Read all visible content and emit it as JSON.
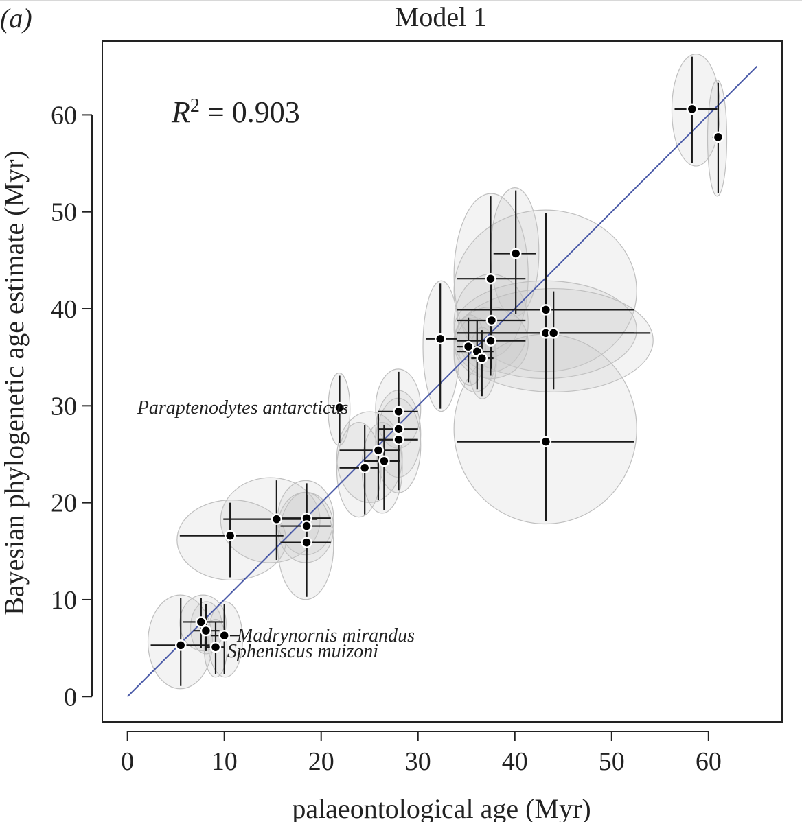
{
  "chart_data": {
    "type": "scatter",
    "panel_label": "(a)",
    "title": "Model 1",
    "xlabel": "palaeontological age (Myr)",
    "ylabel": "Bayesian phylogenetic age estimate (Myr)",
    "r2_label": "R",
    "r2_sup": "2",
    "r2_value": " = 0.903",
    "xlim": [
      -2.6,
      67.6
    ],
    "ylim": [
      -2.6,
      67.6
    ],
    "xticks": [
      0,
      10,
      20,
      30,
      40,
      50,
      60
    ],
    "yticks": [
      0,
      10,
      20,
      30,
      40,
      50,
      60
    ],
    "xtick_labels": [
      "0",
      "10",
      "20",
      "30",
      "40",
      "50",
      "60"
    ],
    "ytick_labels": [
      "0",
      "10",
      "20",
      "30",
      "40",
      "50",
      "60"
    ],
    "line": {
      "x": [
        0,
        65
      ],
      "y": [
        0,
        65
      ],
      "color": "#4a5aa8"
    },
    "colors": {
      "point": "#000000",
      "ellipse_fill": "#c8c8c8",
      "ellipse_stroke": "#bfbfbf",
      "errorbar": "#1a1a1a"
    },
    "points": [
      {
        "x": 58.3,
        "y": 60.6,
        "xlo": 56.5,
        "xhi": 60.9,
        "ylo": 55.0,
        "yhi": 66.0
      },
      {
        "x": 61.0,
        "y": 57.7,
        "xlo": 60.4,
        "xhi": 61.4,
        "ylo": 51.9,
        "yhi": 63.3
      },
      {
        "x": 40.1,
        "y": 45.7,
        "xlo": 37.8,
        "xhi": 42.2,
        "ylo": 39.5,
        "yhi": 52.2
      },
      {
        "x": 37.5,
        "y": 43.1,
        "xlo": 34.0,
        "xhi": 41.1,
        "ylo": 35.3,
        "yhi": 51.6
      },
      {
        "x": 43.2,
        "y": 39.9,
        "xlo": 34.0,
        "xhi": 52.3,
        "ylo": 33.8,
        "yhi": 49.9
      },
      {
        "x": 37.6,
        "y": 38.8,
        "xlo": 34.0,
        "xhi": 41.1,
        "ylo": 33.8,
        "yhi": 43.3
      },
      {
        "x": 43.2,
        "y": 37.5,
        "xlo": 34.0,
        "xhi": 52.3,
        "ylo": 33.1,
        "yhi": 42.6
      },
      {
        "x": 44.0,
        "y": 37.5,
        "xlo": 34.0,
        "xhi": 54.0,
        "ylo": 31.7,
        "yhi": 41.8
      },
      {
        "x": 32.3,
        "y": 36.9,
        "xlo": 30.8,
        "xhi": 34.0,
        "ylo": 29.7,
        "yhi": 42.6
      },
      {
        "x": 37.5,
        "y": 36.7,
        "xlo": 34.0,
        "xhi": 41.1,
        "ylo": 33.1,
        "yhi": 39.9
      },
      {
        "x": 35.2,
        "y": 36.1,
        "xlo": 34.0,
        "xhi": 36.7,
        "ylo": 32.4,
        "yhi": 39.1
      },
      {
        "x": 36.1,
        "y": 35.6,
        "xlo": 34.0,
        "xhi": 37.8,
        "ylo": 31.7,
        "yhi": 38.8
      },
      {
        "x": 36.6,
        "y": 34.9,
        "xlo": 35.5,
        "xhi": 37.8,
        "ylo": 31.0,
        "yhi": 37.8
      },
      {
        "x": 43.2,
        "y": 26.3,
        "xlo": 34.0,
        "xhi": 52.3,
        "ylo": 18.1,
        "yhi": 37.1
      },
      {
        "x": 21.9,
        "y": 29.8,
        "xlo": 21.0,
        "xhi": 22.7,
        "ylo": 26.2,
        "yhi": 33.1
      },
      {
        "x": 28.0,
        "y": 29.4,
        "xlo": 25.9,
        "xhi": 30.0,
        "ylo": 25.9,
        "yhi": 33.5
      },
      {
        "x": 28.0,
        "y": 27.6,
        "xlo": 25.9,
        "xhi": 30.0,
        "ylo": 22.9,
        "yhi": 31.3
      },
      {
        "x": 28.0,
        "y": 26.5,
        "xlo": 25.9,
        "xhi": 30.0,
        "ylo": 21.3,
        "yhi": 30.5
      },
      {
        "x": 25.9,
        "y": 25.4,
        "xlo": 21.9,
        "xhi": 28.1,
        "ylo": 20.3,
        "yhi": 29.1
      },
      {
        "x": 26.5,
        "y": 24.3,
        "xlo": 24.5,
        "xhi": 28.1,
        "ylo": 19.2,
        "yhi": 28.0
      },
      {
        "x": 24.5,
        "y": 23.6,
        "xlo": 21.9,
        "xhi": 25.9,
        "ylo": 18.8,
        "yhi": 28.0
      },
      {
        "x": 15.4,
        "y": 18.3,
        "xlo": 9.9,
        "xhi": 19.6,
        "ylo": 14.1,
        "yhi": 22.3
      },
      {
        "x": 18.5,
        "y": 18.4,
        "xlo": 15.8,
        "xhi": 21.0,
        "ylo": 14.9,
        "yhi": 22.0
      },
      {
        "x": 18.5,
        "y": 17.6,
        "xlo": 15.8,
        "xhi": 21.0,
        "ylo": 14.1,
        "yhi": 20.8
      },
      {
        "x": 10.6,
        "y": 16.6,
        "xlo": 5.4,
        "xhi": 16.1,
        "ylo": 12.3,
        "yhi": 20.0
      },
      {
        "x": 18.5,
        "y": 15.9,
        "xlo": 15.8,
        "xhi": 21.0,
        "ylo": 10.3,
        "yhi": 20.8
      },
      {
        "x": 7.6,
        "y": 7.7,
        "xlo": 5.7,
        "xhi": 9.9,
        "ylo": 5.0,
        "yhi": 10.2
      },
      {
        "x": 8.1,
        "y": 6.8,
        "xlo": 6.8,
        "xhi": 9.5,
        "ylo": 4.7,
        "yhi": 9.5
      },
      {
        "x": 10.0,
        "y": 6.3,
        "xlo": 8.6,
        "xhi": 11.6,
        "ylo": 2.3,
        "yhi": 9.5
      },
      {
        "x": 5.5,
        "y": 5.3,
        "xlo": 2.4,
        "xhi": 8.5,
        "ylo": 1.1,
        "yhi": 10.2
      },
      {
        "x": 9.1,
        "y": 5.1,
        "xlo": 8.2,
        "xhi": 10.0,
        "ylo": 2.3,
        "yhi": 7.7
      }
    ],
    "annotations": [
      {
        "text": "Paraptenodytes antarcticus",
        "x": 1.0,
        "y": 29.8
      },
      {
        "text": "Madrynornis mirandus",
        "x": 11.3,
        "y": 6.3
      },
      {
        "text": "Spheniscus muizoni",
        "x": 10.3,
        "y": 4.7
      }
    ]
  }
}
